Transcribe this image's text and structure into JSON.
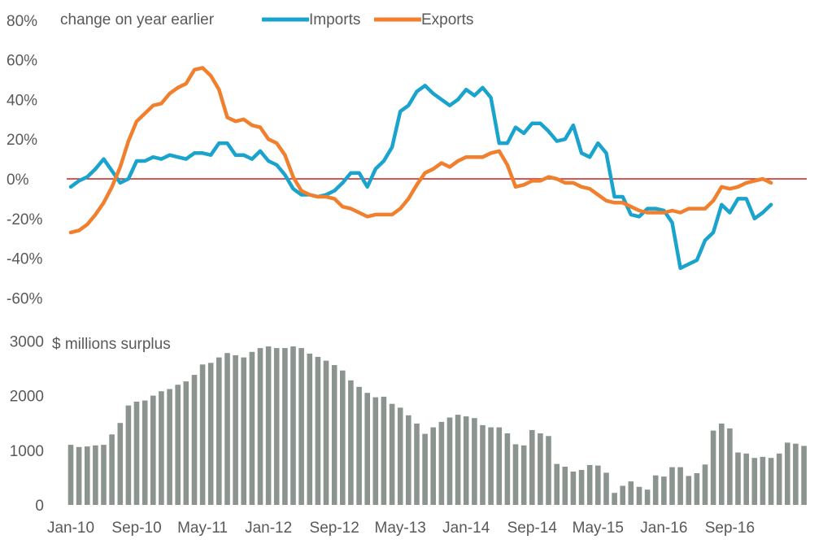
{
  "chart_data": [
    {
      "type": "line",
      "title": "change on year earlier",
      "ylabel": "change on year earlier",
      "ylim": [
        -60,
        80
      ],
      "y_ticks": [
        "80%",
        "60%",
        "40%",
        "20%",
        "0%",
        "-20%",
        "-40%",
        "-60%"
      ],
      "y_tick_values": [
        80,
        60,
        40,
        20,
        0,
        -20,
        -40,
        -60
      ],
      "reference_line": 0,
      "legend": [
        "Imports",
        "Exports"
      ],
      "legend_position": "top",
      "series": [
        {
          "name": "Imports",
          "color": "#1aa3cc",
          "values": [
            -4,
            -1,
            1,
            5,
            10,
            4,
            -2,
            0,
            9,
            9,
            11,
            10,
            12,
            11,
            10,
            13,
            13,
            12,
            18,
            18,
            12,
            12,
            10,
            14,
            9,
            7,
            2,
            -5,
            -8,
            -8,
            -9,
            -8,
            -6,
            -2,
            3,
            3,
            -4,
            5,
            9,
            16,
            34,
            37,
            44,
            47,
            43,
            40,
            37,
            40,
            45,
            42,
            46,
            41,
            18,
            18,
            26,
            23,
            28,
            28,
            24,
            19,
            20,
            27,
            13,
            11,
            18,
            13,
            -9,
            -9,
            -18,
            -19,
            -15,
            -15,
            -16,
            -22,
            -45,
            -43,
            -41,
            -31,
            -27,
            -13,
            -17,
            -10,
            -10,
            -20,
            -17,
            -13
          ]
        },
        {
          "name": "Exports",
          "color": "#f07f2e",
          "values": [
            -27,
            -26,
            -23,
            -18,
            -12,
            -4,
            6,
            19,
            29,
            33,
            37,
            38,
            43,
            46,
            48,
            55,
            56,
            52,
            45,
            31,
            29,
            30,
            27,
            26,
            20,
            18,
            12,
            1,
            -6,
            -8,
            -9,
            -9,
            -10,
            -14,
            -15,
            -17,
            -19,
            -18,
            -18,
            -18,
            -15,
            -10,
            -3,
            3,
            5,
            8,
            6,
            9,
            11,
            11,
            11,
            13,
            14,
            7,
            -4,
            -3,
            -1,
            -1,
            1,
            0,
            -2,
            -2,
            -4,
            -5,
            -8,
            -11,
            -12,
            -12,
            -14,
            -16,
            -17,
            -17,
            -17,
            -16,
            -17,
            -15,
            -15,
            -15,
            -11,
            -4,
            -5,
            -4,
            -2,
            -1,
            0,
            -2
          ]
        }
      ]
    },
    {
      "type": "bar",
      "title": "$ millions surplus",
      "ylabel": "$ millions surplus",
      "ylim": [
        0,
        3000
      ],
      "y_ticks": [
        "3000",
        "2000",
        "1000",
        "0"
      ],
      "y_tick_values": [
        3000,
        2000,
        1000,
        0
      ],
      "color": "#8c9490",
      "x_tick_labels": [
        "Jan-10",
        "Sep-10",
        "May-11",
        "Jan-12",
        "Sep-12",
        "May-13",
        "Jan-14",
        "Sep-14",
        "May-15",
        "Jan-16",
        "Sep-16"
      ],
      "x_tick_indices": [
        0,
        8,
        16,
        24,
        32,
        40,
        48,
        56,
        64,
        72,
        80
      ],
      "values": [
        1100,
        1060,
        1070,
        1090,
        1100,
        1290,
        1500,
        1820,
        1890,
        1910,
        2000,
        2080,
        2120,
        2200,
        2260,
        2380,
        2570,
        2600,
        2700,
        2780,
        2740,
        2700,
        2800,
        2870,
        2900,
        2870,
        2870,
        2900,
        2870,
        2770,
        2710,
        2640,
        2560,
        2460,
        2280,
        2160,
        2050,
        1970,
        1980,
        1850,
        1780,
        1640,
        1490,
        1300,
        1420,
        1520,
        1600,
        1650,
        1620,
        1590,
        1460,
        1420,
        1420,
        1310,
        1110,
        1090,
        1370,
        1310,
        1260,
        750,
        700,
        610,
        640,
        730,
        720,
        590,
        220,
        350,
        430,
        330,
        280,
        540,
        520,
        690,
        690,
        530,
        580,
        740,
        1360,
        1490,
        1400,
        960,
        940,
        860,
        880,
        860,
        940,
        1140,
        1120,
        1080
      ]
    }
  ]
}
